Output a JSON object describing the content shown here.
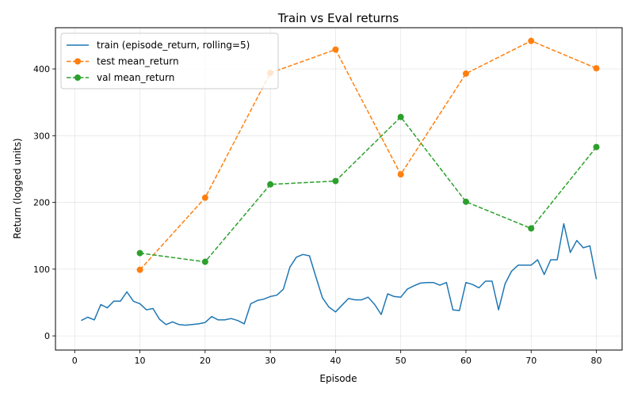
{
  "chart_data": {
    "type": "line",
    "title": "Train vs Eval returns",
    "xlabel": "Episode",
    "ylabel": "Return (logged units)",
    "xlim": [
      -2.95,
      83.95
    ],
    "ylim": [
      -21.25,
      461.75
    ],
    "xticks": [
      0,
      10,
      20,
      30,
      40,
      50,
      60,
      70,
      80
    ],
    "yticks": [
      0,
      100,
      200,
      300,
      400
    ],
    "grid": true,
    "legend": "top-left",
    "series": [
      {
        "name": "train (episode_return, rolling=5)",
        "style": "solid",
        "marker": "none",
        "color": "#1f77b4",
        "x": [
          1,
          2,
          3,
          4,
          5,
          6,
          7,
          8,
          9,
          10,
          11,
          12,
          13,
          14,
          15,
          16,
          17,
          18,
          19,
          20,
          21,
          22,
          23,
          24,
          25,
          26,
          27,
          28,
          29,
          30,
          31,
          32,
          33,
          34,
          35,
          36,
          37,
          38,
          39,
          40,
          41,
          42,
          43,
          44,
          45,
          46,
          47,
          48,
          49,
          50,
          51,
          52,
          53,
          54,
          55,
          56,
          57,
          58,
          59,
          60,
          61,
          62,
          63,
          64,
          65,
          66,
          67,
          68,
          69,
          70,
          71,
          72,
          73,
          74,
          75,
          76,
          77,
          78,
          79,
          80
        ],
        "y": [
          23,
          28,
          24,
          47,
          42,
          52,
          52,
          66,
          52,
          48,
          39,
          41,
          25,
          17,
          21,
          17,
          16,
          17,
          18,
          20,
          29,
          24,
          24,
          26,
          23,
          18,
          48,
          53,
          55,
          59,
          61,
          70,
          103,
          118,
          122,
          120,
          88,
          57,
          43,
          36,
          46,
          56,
          54,
          54,
          58,
          47,
          32,
          63,
          59,
          58,
          70,
          75,
          79,
          80,
          80,
          76,
          80,
          39,
          38,
          80,
          77,
          72,
          82,
          82,
          39,
          78,
          97,
          106,
          106,
          106,
          114,
          92,
          114,
          114,
          168,
          125,
          143,
          132,
          135,
          85
        ]
      },
      {
        "name": "test mean_return",
        "style": "dashed",
        "marker": "circle",
        "color": "#ff7f0e",
        "x": [
          10,
          20,
          30,
          40,
          50,
          60,
          70,
          80
        ],
        "y": [
          99,
          207,
          394,
          429,
          242,
          393,
          442,
          401
        ]
      },
      {
        "name": "val mean_return",
        "style": "dashed",
        "marker": "circle",
        "color": "#2ca02c",
        "x": [
          10,
          20,
          30,
          40,
          50,
          60,
          70,
          80
        ],
        "y": [
          124,
          111,
          227,
          232,
          328,
          201,
          161,
          283
        ]
      }
    ]
  }
}
